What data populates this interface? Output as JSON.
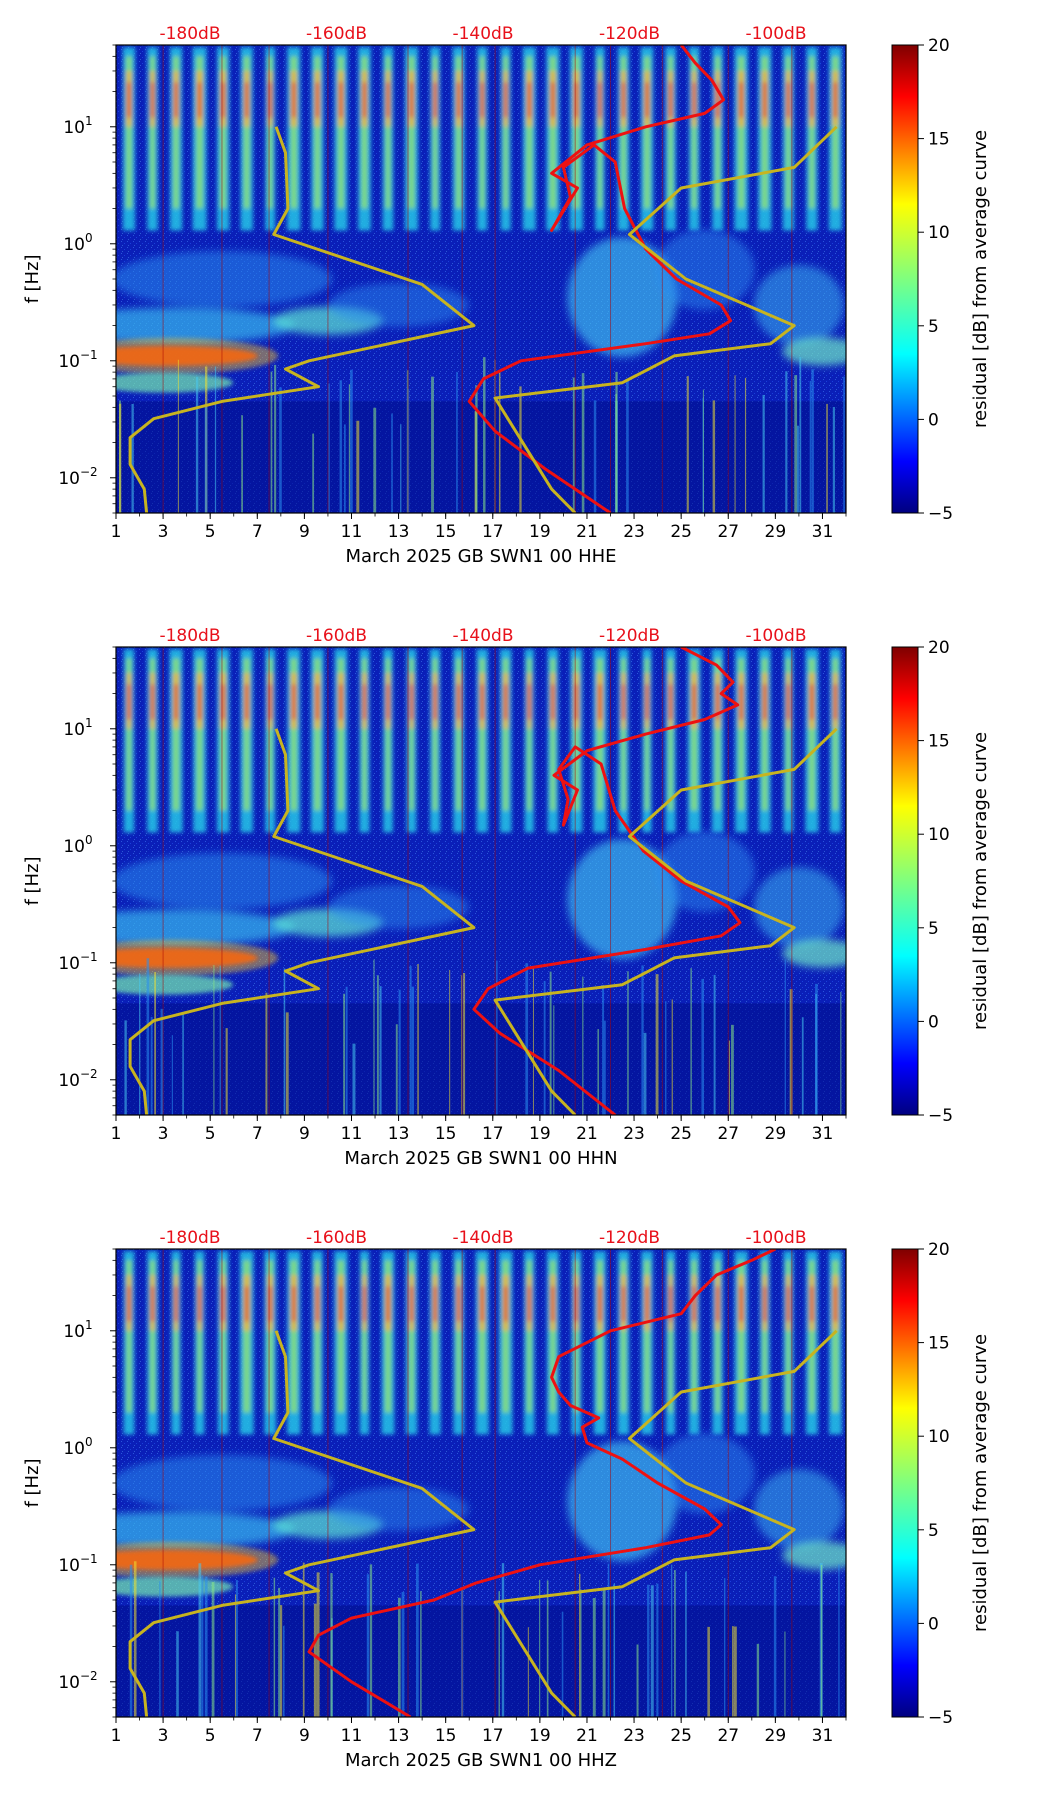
{
  "chart_data": [
    {
      "type": "heatmap",
      "subtype": "spectrogram",
      "xlabel": "March 2025 GB SWN1 00 HHE",
      "ylabel": "f [Hz]",
      "x_ticks": [
        "1",
        "3",
        "5",
        "7",
        "9",
        "11",
        "13",
        "15",
        "17",
        "19",
        "21",
        "23",
        "25",
        "27",
        "29",
        "31"
      ],
      "xlim": [
        1,
        32
      ],
      "y_scale": "log",
      "ylim": [
        0.005,
        50
      ],
      "y_ticks": [
        {
          "base": "10",
          "exp": "−2",
          "value": 0.01
        },
        {
          "base": "10",
          "exp": "−1",
          "value": 0.1
        },
        {
          "base": "10",
          "exp": "0",
          "value": 1
        },
        {
          "base": "10",
          "exp": "1",
          "value": 10
        }
      ],
      "top_axis_labels": [
        "-180dB",
        "-160dB",
        "-140dB",
        "-120dB",
        "-100dB"
      ],
      "top_axis_color": "#e8101a",
      "colorbar": {
        "label": "residual [dB] from average curve",
        "ticks": [
          "20",
          "15",
          "10",
          "5",
          "0",
          "−5"
        ],
        "range": [
          -5,
          20
        ],
        "colormap": "jet"
      },
      "series": [
        {
          "color": "#ee1111",
          "points": [
            [
              22.0,
              0.005
            ],
            [
              19.2,
              0.012
            ],
            [
              17.1,
              0.025
            ],
            [
              16.0,
              0.045
            ],
            [
              16.6,
              0.07
            ],
            [
              18.2,
              0.1
            ],
            [
              23.5,
              0.14
            ],
            [
              26.2,
              0.17
            ],
            [
              27.1,
              0.22
            ],
            [
              26.7,
              0.3
            ],
            [
              24.8,
              0.5
            ],
            [
              23.5,
              0.9
            ],
            [
              22.6,
              2
            ],
            [
              22.2,
              5
            ],
            [
              21.3,
              7
            ],
            [
              20.0,
              4.5
            ],
            [
              20.3,
              2.5
            ],
            [
              19.5,
              1.3
            ],
            [
              20.6,
              3
            ],
            [
              19.5,
              4
            ],
            [
              21.0,
              7
            ],
            [
              23.5,
              10
            ],
            [
              26.0,
              13
            ],
            [
              26.8,
              17
            ],
            [
              26.3,
              25
            ],
            [
              25.6,
              35
            ],
            [
              25.0,
              50
            ]
          ]
        },
        {
          "color": "#c8b420",
          "points": [
            [
              2.3,
              0.005
            ],
            [
              2.2,
              0.008
            ],
            [
              1.6,
              0.013
            ],
            [
              1.6,
              0.022
            ],
            [
              2.6,
              0.032
            ],
            [
              5.5,
              0.045
            ],
            [
              9.6,
              0.06
            ],
            [
              8.2,
              0.085
            ],
            [
              9.2,
              0.1
            ],
            [
              16.2,
              0.2
            ],
            [
              14.0,
              0.45
            ],
            [
              7.7,
              1.2
            ],
            [
              8.3,
              2
            ],
            [
              8.2,
              6
            ],
            [
              7.8,
              10
            ]
          ]
        },
        {
          "color": "#c8b420",
          "points": [
            [
              20.5,
              0.005
            ],
            [
              19.5,
              0.008
            ],
            [
              17.1,
              0.048
            ],
            [
              22.5,
              0.065
            ],
            [
              24.7,
              0.11
            ],
            [
              28.8,
              0.14
            ],
            [
              29.8,
              0.2
            ],
            [
              25.2,
              0.5
            ],
            [
              22.8,
              1.2
            ],
            [
              25.0,
              3
            ],
            [
              29.8,
              4.5
            ],
            [
              31.6,
              10
            ]
          ]
        }
      ]
    },
    {
      "type": "heatmap",
      "subtype": "spectrogram",
      "xlabel": "March 2025 GB SWN1 00 HHN",
      "ylabel": "f [Hz]",
      "x_ticks": [
        "1",
        "3",
        "5",
        "7",
        "9",
        "11",
        "13",
        "15",
        "17",
        "19",
        "21",
        "23",
        "25",
        "27",
        "29",
        "31"
      ],
      "xlim": [
        1,
        32
      ],
      "y_scale": "log",
      "ylim": [
        0.005,
        50
      ],
      "y_ticks": [
        {
          "base": "10",
          "exp": "−2",
          "value": 0.01
        },
        {
          "base": "10",
          "exp": "−1",
          "value": 0.1
        },
        {
          "base": "10",
          "exp": "0",
          "value": 1
        },
        {
          "base": "10",
          "exp": "1",
          "value": 10
        }
      ],
      "top_axis_labels": [
        "-180dB",
        "-160dB",
        "-140dB",
        "-120dB",
        "-100dB"
      ],
      "top_axis_color": "#e8101a",
      "colorbar": {
        "label": "residual [dB] from average curve",
        "ticks": [
          "20",
          "15",
          "10",
          "5",
          "0",
          "−5"
        ],
        "range": [
          -5,
          20
        ],
        "colormap": "jet"
      },
      "series": [
        {
          "color": "#ee1111",
          "points": [
            [
              22.2,
              0.005
            ],
            [
              19.8,
              0.012
            ],
            [
              17.3,
              0.025
            ],
            [
              16.2,
              0.04
            ],
            [
              16.8,
              0.06
            ],
            [
              18.5,
              0.09
            ],
            [
              23.5,
              0.13
            ],
            [
              26.7,
              0.17
            ],
            [
              27.5,
              0.22
            ],
            [
              27.0,
              0.3
            ],
            [
              25.0,
              0.5
            ],
            [
              23.4,
              0.9
            ],
            [
              22.2,
              2
            ],
            [
              21.6,
              5
            ],
            [
              20.5,
              7
            ],
            [
              19.8,
              4.5
            ],
            [
              20.2,
              2.5
            ],
            [
              20.0,
              1.5
            ],
            [
              20.6,
              3
            ],
            [
              19.6,
              4
            ],
            [
              21.0,
              6.5
            ],
            [
              23.5,
              9
            ],
            [
              26.0,
              12
            ],
            [
              27.4,
              16
            ],
            [
              26.7,
              20
            ],
            [
              27.2,
              25
            ],
            [
              26.5,
              35
            ],
            [
              25.0,
              50
            ]
          ]
        },
        {
          "color": "#c8b420",
          "points": [
            [
              2.3,
              0.005
            ],
            [
              2.2,
              0.008
            ],
            [
              1.6,
              0.013
            ],
            [
              1.6,
              0.022
            ],
            [
              2.6,
              0.032
            ],
            [
              5.5,
              0.045
            ],
            [
              9.6,
              0.06
            ],
            [
              8.2,
              0.085
            ],
            [
              9.2,
              0.1
            ],
            [
              16.2,
              0.2
            ],
            [
              14.0,
              0.45
            ],
            [
              7.7,
              1.2
            ],
            [
              8.3,
              2
            ],
            [
              8.2,
              6
            ],
            [
              7.8,
              10
            ]
          ]
        },
        {
          "color": "#c8b420",
          "points": [
            [
              20.5,
              0.005
            ],
            [
              19.5,
              0.008
            ],
            [
              17.1,
              0.048
            ],
            [
              22.5,
              0.065
            ],
            [
              24.7,
              0.11
            ],
            [
              28.8,
              0.14
            ],
            [
              29.8,
              0.2
            ],
            [
              25.2,
              0.5
            ],
            [
              22.8,
              1.2
            ],
            [
              25.0,
              3
            ],
            [
              29.8,
              4.5
            ],
            [
              31.6,
              10
            ]
          ]
        }
      ]
    },
    {
      "type": "heatmap",
      "subtype": "spectrogram",
      "xlabel": "March 2025 GB SWN1 00 HHZ",
      "ylabel": "f [Hz]",
      "x_ticks": [
        "1",
        "3",
        "5",
        "7",
        "9",
        "11",
        "13",
        "15",
        "17",
        "19",
        "21",
        "23",
        "25",
        "27",
        "29",
        "31"
      ],
      "xlim": [
        1,
        32
      ],
      "y_scale": "log",
      "ylim": [
        0.005,
        50
      ],
      "y_ticks": [
        {
          "base": "10",
          "exp": "−2",
          "value": 0.01
        },
        {
          "base": "10",
          "exp": "−1",
          "value": 0.1
        },
        {
          "base": "10",
          "exp": "0",
          "value": 1
        },
        {
          "base": "10",
          "exp": "1",
          "value": 10
        }
      ],
      "top_axis_labels": [
        "-180dB",
        "-160dB",
        "-140dB",
        "-120dB",
        "-100dB"
      ],
      "top_axis_color": "#e8101a",
      "colorbar": {
        "label": "residual [dB] from average curve",
        "ticks": [
          "20",
          "15",
          "10",
          "5",
          "0",
          "−5"
        ],
        "range": [
          -5,
          20
        ],
        "colormap": "jet"
      },
      "series": [
        {
          "color": "#ee1111",
          "points": [
            [
              13.5,
              0.005
            ],
            [
              11.0,
              0.01
            ],
            [
              9.2,
              0.018
            ],
            [
              9.6,
              0.025
            ],
            [
              11.0,
              0.035
            ],
            [
              14.5,
              0.05
            ],
            [
              16.3,
              0.07
            ],
            [
              19.0,
              0.1
            ],
            [
              23.5,
              0.14
            ],
            [
              26.2,
              0.18
            ],
            [
              26.7,
              0.22
            ],
            [
              26.0,
              0.3
            ],
            [
              24.0,
              0.5
            ],
            [
              22.5,
              0.8
            ],
            [
              21.0,
              1.1
            ],
            [
              20.8,
              1.5
            ],
            [
              21.5,
              1.8
            ],
            [
              20.3,
              2.3
            ],
            [
              19.8,
              3
            ],
            [
              19.5,
              4
            ],
            [
              19.8,
              6
            ],
            [
              22.0,
              10
            ],
            [
              25.0,
              14
            ],
            [
              25.6,
              20
            ],
            [
              26.5,
              30
            ],
            [
              28.0,
              40
            ],
            [
              29.0,
              50
            ]
          ]
        },
        {
          "color": "#c8b420",
          "points": [
            [
              2.3,
              0.005
            ],
            [
              2.2,
              0.008
            ],
            [
              1.6,
              0.013
            ],
            [
              1.6,
              0.022
            ],
            [
              2.6,
              0.032
            ],
            [
              5.5,
              0.045
            ],
            [
              9.6,
              0.06
            ],
            [
              8.2,
              0.085
            ],
            [
              9.2,
              0.1
            ],
            [
              16.2,
              0.2
            ],
            [
              14.0,
              0.45
            ],
            [
              7.7,
              1.2
            ],
            [
              8.3,
              2
            ],
            [
              8.2,
              6
            ],
            [
              7.8,
              10
            ]
          ]
        },
        {
          "color": "#c8b420",
          "points": [
            [
              20.5,
              0.005
            ],
            [
              19.5,
              0.008
            ],
            [
              17.1,
              0.048
            ],
            [
              22.5,
              0.065
            ],
            [
              24.7,
              0.11
            ],
            [
              28.8,
              0.14
            ],
            [
              29.8,
              0.2
            ],
            [
              25.2,
              0.5
            ],
            [
              22.8,
              1.2
            ],
            [
              25.0,
              3
            ],
            [
              29.8,
              4.5
            ],
            [
              31.6,
              10
            ]
          ]
        }
      ]
    }
  ]
}
